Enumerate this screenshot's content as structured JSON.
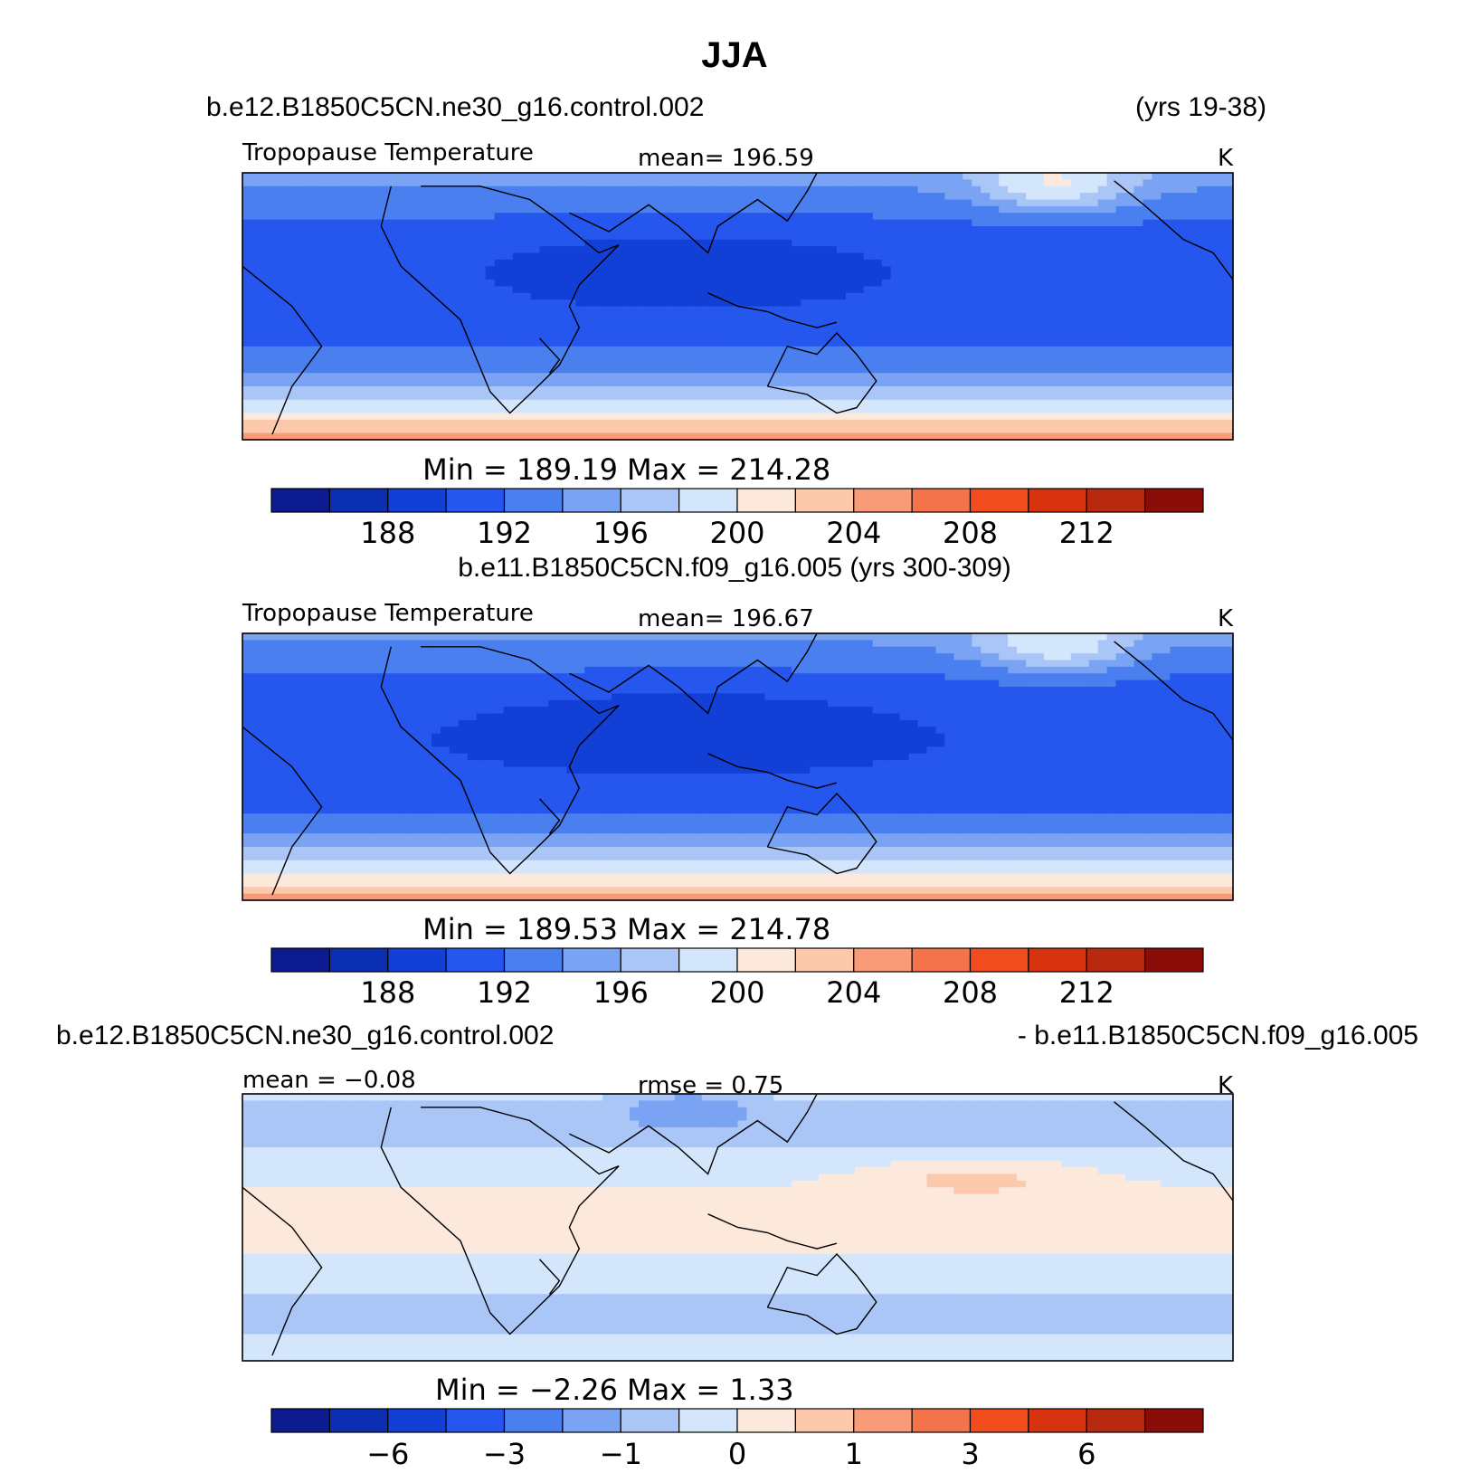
{
  "chart_data": {
    "type": "heatmap",
    "title": "JJA",
    "panels": [
      {
        "case_left": "b.e12.B1850C5CN.ne30_g16.control.002",
        "case_right": "(yrs 19-38)",
        "variable": "Tropopause Temperature",
        "stat": "mean=  196.59",
        "units": "K",
        "min_label": "Min  =  189.19",
        "max_label": "Max  =  214.28",
        "min": 189.19,
        "max": 214.28,
        "mean": 196.59,
        "colorbar_ticks": [
          "188",
          "192",
          "196",
          "200",
          "204",
          "208",
          "212"
        ],
        "colorbar_levels": [
          186,
          188,
          190,
          192,
          194,
          196,
          198,
          200,
          202,
          204,
          206,
          208,
          210,
          212
        ],
        "field_style": "full"
      },
      {
        "case_left": "b.e11.B1850C5CN.f09_g16.005 (yrs 300-309)",
        "case_right": "",
        "variable": "Tropopause Temperature",
        "stat": "mean=  196.67",
        "units": "K",
        "min_label": "Min  =  189.53",
        "max_label": "Max  =  214.78",
        "min": 189.53,
        "max": 214.78,
        "mean": 196.67,
        "colorbar_ticks": [
          "188",
          "192",
          "196",
          "200",
          "204",
          "208",
          "212"
        ],
        "colorbar_levels": [
          186,
          188,
          190,
          192,
          194,
          196,
          198,
          200,
          202,
          204,
          206,
          208,
          210,
          212
        ],
        "field_style": "full"
      },
      {
        "case_left": "b.e12.B1850C5CN.ne30_g16.control.002",
        "case_right": "- b.e11.B1850C5CN.f09_g16.005",
        "variable": "mean =   −0.08",
        "stat": "rmse =     0.75",
        "units": "K",
        "min_label": "Min  =    −2.26",
        "max_label": "Max  =     1.33",
        "min": -2.26,
        "max": 1.33,
        "mean": -0.08,
        "rmse": 0.75,
        "colorbar_ticks": [
          "−6",
          "−3",
          "−1",
          "0",
          "1",
          "3",
          "6"
        ],
        "field_style": "diff"
      }
    ],
    "colormap": [
      "#0c1b8f",
      "#0a2fb3",
      "#1240d6",
      "#2556ee",
      "#4a7fef",
      "#7aa3f3",
      "#a9c6f7",
      "#d4e6fb",
      "#fce9dc",
      "#fcc9ad",
      "#f99b78",
      "#f5734a",
      "#f04c1e",
      "#d8330f",
      "#b82a10",
      "#8b0d0a"
    ]
  }
}
